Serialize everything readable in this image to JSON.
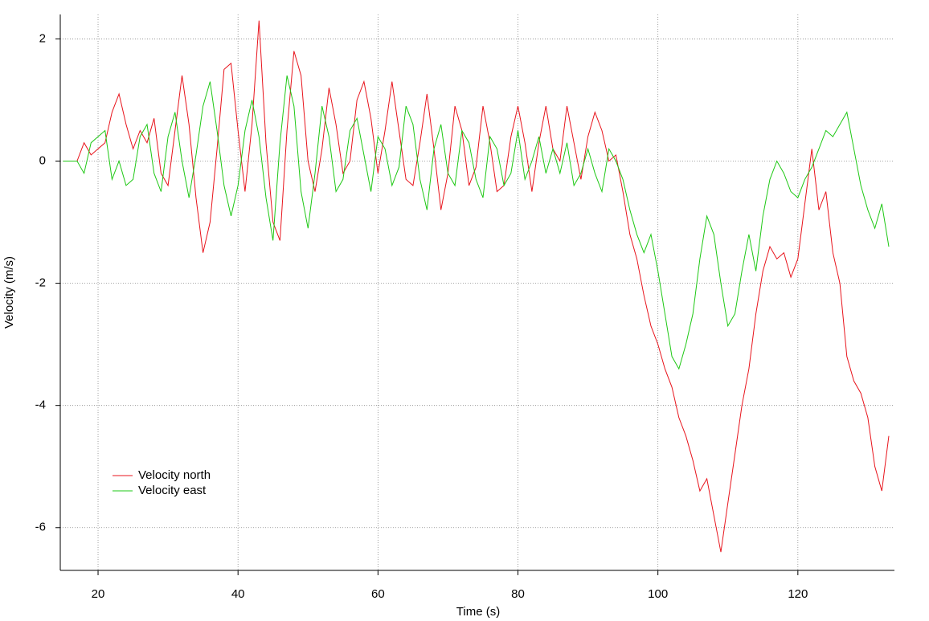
{
  "chart_data": {
    "type": "line",
    "xlabel": "Time (s)",
    "ylabel": "Velocity (m/s)",
    "xlim": [
      14.6,
      133.8
    ],
    "ylim": [
      -6.7,
      2.4
    ],
    "xticks": [
      20,
      40,
      60,
      80,
      100,
      120
    ],
    "yticks": [
      -6,
      -4,
      -2,
      0,
      2
    ],
    "grid": true,
    "legend": "lower left",
    "x": [
      15,
      16,
      17,
      18,
      19,
      20,
      21,
      22,
      23,
      24,
      25,
      26,
      27,
      28,
      29,
      30,
      31,
      32,
      33,
      34,
      35,
      36,
      37,
      38,
      39,
      40,
      41,
      42,
      43,
      44,
      45,
      46,
      47,
      48,
      49,
      50,
      51,
      52,
      53,
      54,
      55,
      56,
      57,
      58,
      59,
      60,
      61,
      62,
      63,
      64,
      65,
      66,
      67,
      68,
      69,
      70,
      71,
      72,
      73,
      74,
      75,
      76,
      77,
      78,
      79,
      80,
      81,
      82,
      83,
      84,
      85,
      86,
      87,
      88,
      89,
      90,
      91,
      92,
      93,
      94,
      95,
      96,
      97,
      98,
      99,
      100,
      101,
      102,
      103,
      104,
      105,
      106,
      107,
      108,
      109,
      110,
      111,
      112,
      113,
      114,
      115,
      116,
      117,
      118,
      119,
      120,
      121,
      122,
      123,
      124,
      125,
      126,
      127,
      128,
      129,
      130,
      131,
      132,
      133
    ],
    "series": [
      {
        "name": "Velocity north",
        "color": "#e8141c",
        "values": [
          0,
          0,
          0,
          0.3,
          0.1,
          0.2,
          0.3,
          0.8,
          1.1,
          0.6,
          0.2,
          0.5,
          0.3,
          0.7,
          -0.2,
          -0.4,
          0.5,
          1.4,
          0.6,
          -0.6,
          -1.5,
          -1.0,
          0.2,
          1.5,
          1.6,
          0.5,
          -0.5,
          0.6,
          2.3,
          0.3,
          -1.0,
          -1.3,
          0.5,
          1.8,
          1.4,
          0.0,
          -0.5,
          0.2,
          1.2,
          0.6,
          -0.2,
          0.0,
          1.0,
          1.3,
          0.7,
          -0.2,
          0.5,
          1.3,
          0.5,
          -0.3,
          -0.4,
          0.3,
          1.1,
          0.2,
          -0.8,
          -0.2,
          0.9,
          0.5,
          -0.4,
          -0.1,
          0.9,
          0.3,
          -0.5,
          -0.4,
          0.4,
          0.9,
          0.3,
          -0.5,
          0.3,
          0.9,
          0.2,
          0.0,
          0.9,
          0.3,
          -0.3,
          0.4,
          0.8,
          0.5,
          0.0,
          0.1,
          -0.5,
          -1.2,
          -1.6,
          -2.2,
          -2.7,
          -3.0,
          -3.4,
          -3.7,
          -4.2,
          -4.5,
          -4.9,
          -5.4,
          -5.2,
          -5.8,
          -6.4,
          -5.6,
          -4.8,
          -4.0,
          -3.4,
          -2.5,
          -1.8,
          -1.4,
          -1.6,
          -1.5,
          -1.9,
          -1.6,
          -0.7,
          0.2,
          -0.8,
          -0.5,
          -1.5,
          -2.0,
          -3.2,
          -3.6,
          -3.8,
          -4.2,
          -5.0,
          -5.4,
          -4.5
        ]
      },
      {
        "name": "Velocity east",
        "color": "#1ec814",
        "values": [
          0,
          0,
          0,
          -0.2,
          0.3,
          0.4,
          0.5,
          -0.3,
          0.0,
          -0.4,
          -0.3,
          0.4,
          0.6,
          -0.2,
          -0.5,
          0.4,
          0.8,
          0.0,
          -0.6,
          0.1,
          0.9,
          1.3,
          0.5,
          -0.4,
          -0.9,
          -0.4,
          0.5,
          1.0,
          0.4,
          -0.6,
          -1.3,
          0.3,
          1.4,
          0.9,
          -0.5,
          -1.1,
          -0.2,
          0.9,
          0.4,
          -0.5,
          -0.3,
          0.5,
          0.7,
          0.1,
          -0.5,
          0.4,
          0.2,
          -0.4,
          -0.1,
          0.9,
          0.6,
          -0.3,
          -0.8,
          0.2,
          0.6,
          -0.2,
          -0.4,
          0.5,
          0.3,
          -0.3,
          -0.6,
          0.4,
          0.2,
          -0.4,
          -0.2,
          0.5,
          -0.3,
          0.0,
          0.4,
          -0.2,
          0.2,
          -0.2,
          0.3,
          -0.4,
          -0.2,
          0.2,
          -0.2,
          -0.5,
          0.2,
          0.0,
          -0.3,
          -0.8,
          -1.2,
          -1.5,
          -1.2,
          -1.8,
          -2.5,
          -3.2,
          -3.4,
          -3.0,
          -2.5,
          -1.6,
          -0.9,
          -1.2,
          -2.0,
          -2.7,
          -2.5,
          -1.8,
          -1.2,
          -1.8,
          -0.9,
          -0.3,
          0.0,
          -0.2,
          -0.5,
          -0.6,
          -0.3,
          -0.1,
          0.2,
          0.5,
          0.4,
          0.6,
          0.8,
          0.2,
          -0.4,
          -0.8,
          -1.1,
          -0.7,
          -1.4
        ]
      }
    ]
  }
}
